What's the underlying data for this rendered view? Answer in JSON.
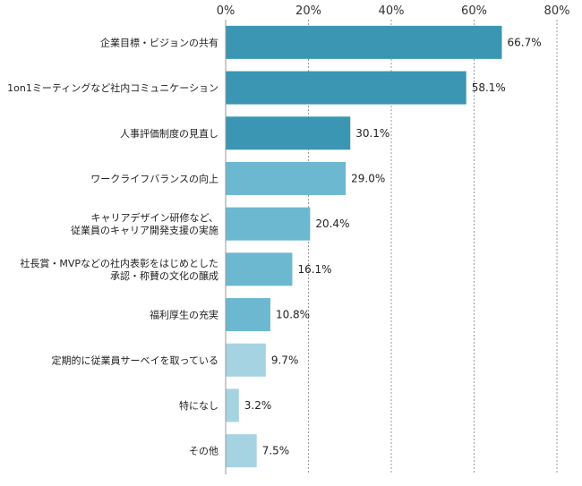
{
  "chart_data": {
    "type": "bar",
    "orientation": "horizontal",
    "title": "",
    "xlabel": "",
    "ylabel": "",
    "xlim": [
      0,
      80
    ],
    "x_ticks": [
      "0%",
      "20%",
      "40%",
      "60%",
      "80%"
    ],
    "grid": "vertical dashed",
    "legend": "none",
    "categories": [
      [
        "企業目標・ビジョンの共有"
      ],
      [
        "1on1ミーティングなど社内コミュニケーション"
      ],
      [
        "人事評価制度の見直し"
      ],
      [
        "ワークライフバランスの向上"
      ],
      [
        "キャリアデザイン研修など、",
        "従業員のキャリア開発支援の実施"
      ],
      [
        "社長賞・MVPなどの社内表彰をはじめとした",
        "承認・称賛の文化の醸成"
      ],
      [
        "福利厚生の充実"
      ],
      [
        "定期的に従業員サーベイを取っている"
      ],
      [
        "特になし"
      ],
      [
        "その他"
      ]
    ],
    "values": [
      66.7,
      58.1,
      30.1,
      29.0,
      20.4,
      16.1,
      10.8,
      9.7,
      3.2,
      7.5
    ],
    "value_labels": [
      "66.7%",
      "58.1%",
      "30.1%",
      "29.0%",
      "20.4%",
      "16.1%",
      "10.8%",
      "9.7%",
      "3.2%",
      "7.5%"
    ],
    "colors": [
      "#3a96b3",
      "#3a96b3",
      "#3a96b3",
      "#6cb8d0",
      "#6cb8d0",
      "#6cb8d0",
      "#6cb8d0",
      "#a6d3e2",
      "#a6d3e2",
      "#a6d3e2"
    ]
  }
}
